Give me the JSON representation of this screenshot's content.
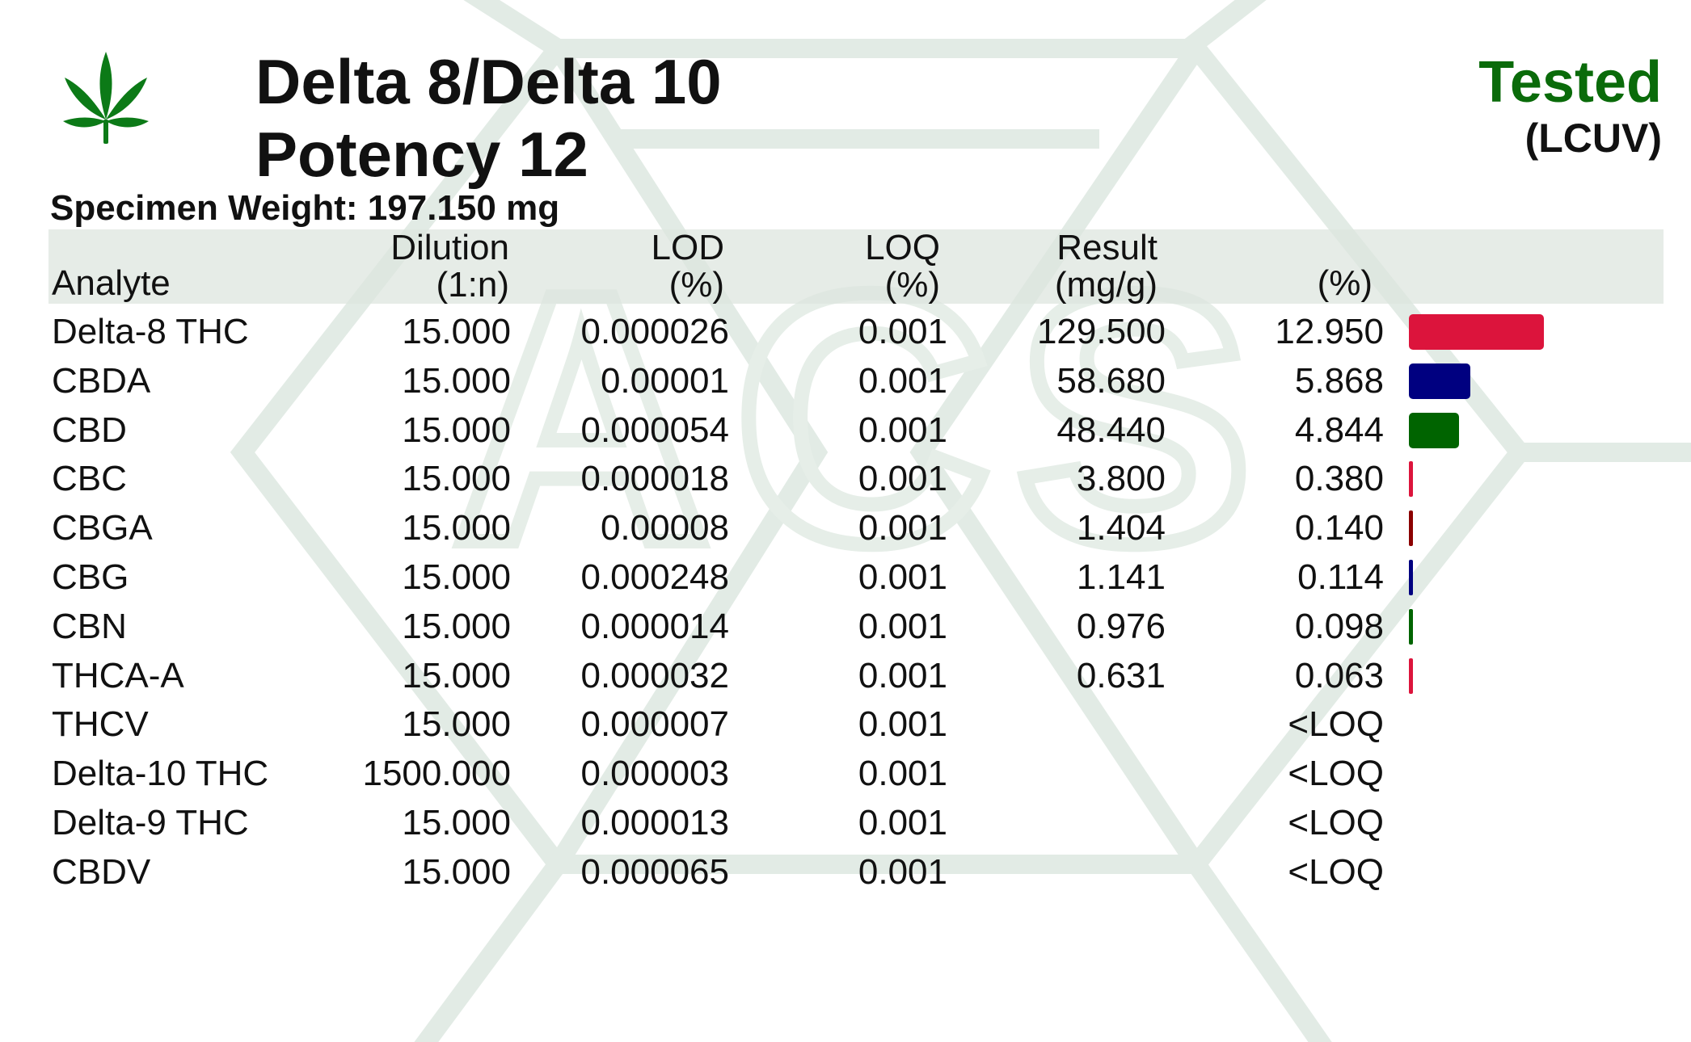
{
  "header": {
    "title_line1": "Delta 8/Delta 10",
    "title_line2": "Potency 12",
    "status": "Tested",
    "method": "(LCUV)",
    "specimen_weight": "Specimen Weight: 197.150 mg",
    "watermark_text": "ACS"
  },
  "colors": {
    "status_green": "#0a6b0a",
    "header_band": "#dce4de",
    "watermark": "#e2ebe5",
    "leaf": "#0c7a17"
  },
  "icons": {
    "logo": "cannabis-leaf-icon"
  },
  "table": {
    "columns": {
      "analyte": "Analyte",
      "dilution_top": "Dilution",
      "dilution_bottom": "(1:n)",
      "lod_top": "LOD",
      "lod_bottom": "(%)",
      "loq_top": "LOQ",
      "loq_bottom": "(%)",
      "result_top": "Result",
      "result_bottom": "(mg/g)",
      "percent": "(%)"
    },
    "rows": [
      {
        "analyte": "Delta-8 THC",
        "dilution": "15.000",
        "lod": "0.000026",
        "loq": "0.001",
        "result": "129.500",
        "percent": "12.950",
        "bar_value": 12.95,
        "bar_color": "#dc143c"
      },
      {
        "analyte": "CBDA",
        "dilution": "15.000",
        "lod": "0.00001",
        "loq": "0.001",
        "result": "58.680",
        "percent": "5.868",
        "bar_value": 5.868,
        "bar_color": "#000080"
      },
      {
        "analyte": "CBD",
        "dilution": "15.000",
        "lod": "0.000054",
        "loq": "0.001",
        "result": "48.440",
        "percent": "4.844",
        "bar_value": 4.844,
        "bar_color": "#006400"
      },
      {
        "analyte": "CBC",
        "dilution": "15.000",
        "lod": "0.000018",
        "loq": "0.001",
        "result": "3.800",
        "percent": "0.380",
        "bar_value": 0.38,
        "bar_color": "#dc143c"
      },
      {
        "analyte": "CBGA",
        "dilution": "15.000",
        "lod": "0.00008",
        "loq": "0.001",
        "result": "1.404",
        "percent": "0.140",
        "bar_value": 0.14,
        "bar_color": "#8b0000"
      },
      {
        "analyte": "CBG",
        "dilution": "15.000",
        "lod": "0.000248",
        "loq": "0.001",
        "result": "1.141",
        "percent": "0.114",
        "bar_value": 0.114,
        "bar_color": "#000080"
      },
      {
        "analyte": "CBN",
        "dilution": "15.000",
        "lod": "0.000014",
        "loq": "0.001",
        "result": "0.976",
        "percent": "0.098",
        "bar_value": 0.098,
        "bar_color": "#006400"
      },
      {
        "analyte": "THCA-A",
        "dilution": "15.000",
        "lod": "0.000032",
        "loq": "0.001",
        "result": "0.631",
        "percent": "0.063",
        "bar_value": 0.063,
        "bar_color": "#dc143c"
      },
      {
        "analyte": "THCV",
        "dilution": "15.000",
        "lod": "0.000007",
        "loq": "0.001",
        "result": "",
        "percent": "<LOQ",
        "bar_value": null,
        "bar_color": ""
      },
      {
        "analyte": "Delta-10 THC",
        "dilution": "1500.000",
        "lod": "0.000003",
        "loq": "0.001",
        "result": "",
        "percent": "<LOQ",
        "bar_value": null,
        "bar_color": ""
      },
      {
        "analyte": "Delta-9 THC",
        "dilution": "15.000",
        "lod": "0.000013",
        "loq": "0.001",
        "result": "",
        "percent": "<LOQ",
        "bar_value": null,
        "bar_color": ""
      },
      {
        "analyte": "CBDV",
        "dilution": "15.000",
        "lod": "0.000065",
        "loq": "0.001",
        "result": "",
        "percent": "<LOQ",
        "bar_value": null,
        "bar_color": ""
      }
    ]
  }
}
